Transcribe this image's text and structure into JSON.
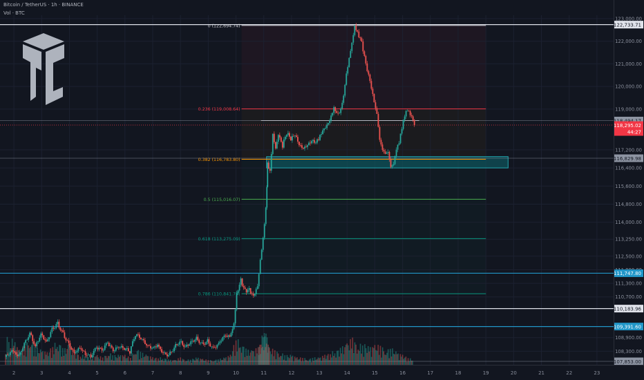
{
  "header": {
    "title": "Bitcoin / TetherUS · 1h · BINANCE",
    "volume_label": "Vol · BTC"
  },
  "colors": {
    "background": "#121620",
    "up": "#26a69a",
    "down": "#ef5350",
    "fib_0": "#c9cbd0",
    "fib_0236": "#f23645",
    "fib_0382": "#ff9800",
    "fib_05": "#4caf50",
    "fib_0618": "#089981",
    "fib_0786": "#089981",
    "support_line": "#2196c8",
    "zone_fill": "#0e5b62",
    "zone_border": "#22a7b0",
    "last_price_tag": "#f23645"
  },
  "chart_data": {
    "type": "candlestick",
    "symbol": "Bitcoin / TetherUS",
    "timeframe": "1h",
    "exchange": "BINANCE",
    "price_axis": {
      "ticks": [
        123000,
        122000,
        121000,
        120000,
        119000,
        117200,
        116400,
        115600,
        114800,
        114000,
        113250,
        112500,
        111900,
        111300,
        110700,
        108900,
        108300
      ],
      "tick_labels": [
        "123,000.00",
        "122,000.00",
        "121,000.00",
        "120,000.00",
        "119,000.00",
        "117,200.00",
        "116,400.00",
        "115,600.00",
        "114,800.00",
        "114,000.00",
        "113,250.00",
        "112,500.00",
        "111,900.00",
        "111,300.00",
        "110,700.00",
        "108,900.00",
        "108,300.00"
      ],
      "range": [
        107700,
        123150
      ]
    },
    "time_axis": {
      "ticks": [
        2,
        3,
        4,
        5,
        6,
        7,
        8,
        9,
        10,
        11,
        12,
        13,
        14,
        15,
        16,
        17,
        18,
        19,
        20,
        21,
        22,
        23
      ],
      "tick_labels": [
        "2",
        "3",
        "4",
        "5",
        "6",
        "7",
        "8",
        "9",
        "10",
        "11",
        "12",
        "13",
        "14",
        "15",
        "16",
        "17",
        "18",
        "19",
        "20",
        "21",
        "22",
        "23"
      ],
      "range": [
        1.5,
        23.6
      ]
    },
    "price_path": [
      [
        1.7,
        108050
      ],
      [
        2.0,
        108300
      ],
      [
        2.2,
        108150
      ],
      [
        2.4,
        108700
      ],
      [
        2.6,
        109150
      ],
      [
        2.8,
        108500
      ],
      [
        3.0,
        109000
      ],
      [
        3.2,
        108600
      ],
      [
        3.4,
        109200
      ],
      [
        3.6,
        109500
      ],
      [
        3.8,
        109100
      ],
      [
        4.0,
        108700
      ],
      [
        4.2,
        108300
      ],
      [
        4.4,
        108500
      ],
      [
        4.6,
        108150
      ],
      [
        4.8,
        108000
      ],
      [
        5.0,
        108400
      ],
      [
        5.2,
        108300
      ],
      [
        5.4,
        108700
      ],
      [
        5.6,
        108400
      ],
      [
        5.8,
        108600
      ],
      [
        6.0,
        108500
      ],
      [
        6.2,
        108300
      ],
      [
        6.4,
        109000
      ],
      [
        6.6,
        108800
      ],
      [
        6.8,
        108500
      ],
      [
        7.0,
        108400
      ],
      [
        7.2,
        108600
      ],
      [
        7.4,
        108300
      ],
      [
        7.6,
        108200
      ],
      [
        7.8,
        108500
      ],
      [
        8.0,
        108700
      ],
      [
        8.2,
        108400
      ],
      [
        8.4,
        108600
      ],
      [
        8.6,
        108800
      ],
      [
        8.8,
        108600
      ],
      [
        9.0,
        108800
      ],
      [
        9.2,
        108500
      ],
      [
        9.4,
        108700
      ],
      [
        9.6,
        109000
      ],
      [
        9.8,
        108900
      ],
      [
        9.95,
        109400
      ],
      [
        10.05,
        110800
      ],
      [
        10.2,
        111400
      ],
      [
        10.35,
        111000
      ],
      [
        10.5,
        111100
      ],
      [
        10.65,
        110800
      ],
      [
        10.8,
        111200
      ],
      [
        10.9,
        112300
      ],
      [
        11.0,
        113200
      ],
      [
        11.1,
        114500
      ],
      [
        11.15,
        116500
      ],
      [
        11.25,
        116200
      ],
      [
        11.35,
        117900
      ],
      [
        11.45,
        117300
      ],
      [
        11.55,
        117900
      ],
      [
        11.7,
        117400
      ],
      [
        11.85,
        117900
      ],
      [
        12.0,
        117600
      ],
      [
        12.15,
        117800
      ],
      [
        12.3,
        117400
      ],
      [
        12.45,
        117300
      ],
      [
        12.6,
        117500
      ],
      [
        12.75,
        117700
      ],
      [
        12.9,
        117600
      ],
      [
        13.0,
        117700
      ],
      [
        13.15,
        118000
      ],
      [
        13.3,
        118200
      ],
      [
        13.45,
        118600
      ],
      [
        13.55,
        119100
      ],
      [
        13.7,
        118800
      ],
      [
        13.85,
        119300
      ],
      [
        14.0,
        120600
      ],
      [
        14.1,
        121300
      ],
      [
        14.2,
        121900
      ],
      [
        14.3,
        122600
      ],
      [
        14.4,
        122300
      ],
      [
        14.55,
        121900
      ],
      [
        14.7,
        121000
      ],
      [
        14.85,
        120300
      ],
      [
        15.0,
        119400
      ],
      [
        15.1,
        118800
      ],
      [
        15.2,
        117600
      ],
      [
        15.3,
        117100
      ],
      [
        15.4,
        116900
      ],
      [
        15.5,
        117000
      ],
      [
        15.6,
        116400
      ],
      [
        15.7,
        116600
      ],
      [
        15.8,
        117300
      ],
      [
        15.9,
        117600
      ],
      [
        16.0,
        118200
      ],
      [
        16.1,
        118700
      ],
      [
        16.2,
        118900
      ],
      [
        16.35,
        118600
      ],
      [
        16.45,
        118300
      ]
    ],
    "volume_path": [
      [
        1.7,
        0.6
      ],
      [
        2.0,
        0.5
      ],
      [
        2.2,
        0.3
      ],
      [
        2.4,
        0.4
      ],
      [
        2.6,
        0.55
      ],
      [
        2.8,
        0.35
      ],
      [
        3.0,
        0.3
      ],
      [
        3.2,
        0.25
      ],
      [
        3.4,
        0.4
      ],
      [
        3.6,
        0.5
      ],
      [
        3.8,
        0.3
      ],
      [
        4.0,
        0.45
      ],
      [
        4.2,
        0.25
      ],
      [
        4.4,
        0.2
      ],
      [
        4.6,
        0.2
      ],
      [
        4.8,
        0.15
      ],
      [
        5.0,
        0.2
      ],
      [
        5.2,
        0.15
      ],
      [
        5.4,
        0.25
      ],
      [
        5.6,
        0.2
      ],
      [
        5.8,
        0.2
      ],
      [
        6.0,
        0.2
      ],
      [
        6.2,
        0.15
      ],
      [
        6.4,
        0.35
      ],
      [
        6.6,
        0.25
      ],
      [
        6.8,
        0.2
      ],
      [
        7.0,
        0.15
      ],
      [
        7.2,
        0.15
      ],
      [
        7.4,
        0.15
      ],
      [
        7.6,
        0.1
      ],
      [
        7.8,
        0.1
      ],
      [
        8.0,
        0.15
      ],
      [
        8.2,
        0.1
      ],
      [
        8.4,
        0.12
      ],
      [
        8.6,
        0.15
      ],
      [
        8.8,
        0.12
      ],
      [
        9.0,
        0.1
      ],
      [
        9.2,
        0.1
      ],
      [
        9.4,
        0.12
      ],
      [
        9.6,
        0.15
      ],
      [
        9.8,
        0.2
      ],
      [
        10.0,
        0.55
      ],
      [
        10.2,
        0.45
      ],
      [
        10.4,
        0.3
      ],
      [
        10.6,
        0.3
      ],
      [
        10.8,
        0.35
      ],
      [
        10.9,
        0.5
      ],
      [
        11.0,
        0.7
      ],
      [
        11.1,
        0.6
      ],
      [
        11.2,
        0.35
      ],
      [
        11.4,
        0.3
      ],
      [
        11.6,
        0.25
      ],
      [
        11.8,
        0.2
      ],
      [
        12.0,
        0.2
      ],
      [
        12.2,
        0.15
      ],
      [
        12.4,
        0.15
      ],
      [
        12.6,
        0.12
      ],
      [
        12.8,
        0.15
      ],
      [
        13.0,
        0.15
      ],
      [
        13.2,
        0.2
      ],
      [
        13.4,
        0.25
      ],
      [
        13.6,
        0.3
      ],
      [
        13.8,
        0.35
      ],
      [
        14.0,
        0.45
      ],
      [
        14.2,
        0.55
      ],
      [
        14.4,
        0.4
      ],
      [
        14.6,
        0.45
      ],
      [
        14.8,
        0.35
      ],
      [
        15.0,
        0.4
      ],
      [
        15.2,
        0.4
      ],
      [
        15.4,
        0.3
      ],
      [
        15.6,
        0.35
      ],
      [
        15.8,
        0.25
      ],
      [
        16.0,
        0.2
      ],
      [
        16.2,
        0.15
      ],
      [
        16.4,
        0.1
      ]
    ],
    "fib_levels": [
      {
        "key": "fib0",
        "label": "0 (122,694.74)",
        "price": 122694.74,
        "color": "#c9cbd0"
      },
      {
        "key": "fib236",
        "label": "0.236 (119,008.64)",
        "price": 119008.64,
        "color": "#f23645"
      },
      {
        "key": "fib382",
        "label": "0.382 (116,783.80)",
        "price": 116783.8,
        "color": "#ff9800"
      },
      {
        "key": "fib5",
        "label": "0.5 (115,016.07)",
        "price": 115016.07,
        "color": "#4caf50"
      },
      {
        "key": "fib618",
        "label": "0.618 (113,275.09)",
        "price": 113275.09,
        "color": "#089981"
      },
      {
        "key": "fib786",
        "label": "0.786 (110,841.79)",
        "price": 110841.79,
        "color": "#089981"
      }
    ],
    "fib_time_range": [
      10.2,
      19.0
    ],
    "horizontal_lines": [
      {
        "label": "122,733.71",
        "price": 122733.71,
        "color": "#e0e3eb",
        "label_bg": "#e0e3eb",
        "label_fg": "#131722"
      },
      {
        "label": "118,494.17",
        "price": 118494.17,
        "color": "#8e95a3",
        "label_bg": "#8e95a3",
        "label_fg": "#131722"
      },
      {
        "label": "116,829.98",
        "price": 116829.98,
        "color": "#8e95a3",
        "label_bg": "#8e95a3",
        "label_fg": "#131722"
      },
      {
        "label": "111,747.80",
        "price": 111747.8,
        "color": "#2196c8",
        "label_bg": "#2196c8",
        "label_fg": "#ffffff"
      },
      {
        "label": "110,183.96",
        "price": 110183.96,
        "color": "#e0e3eb",
        "label_bg": "#e0e3eb",
        "label_fg": "#131722"
      },
      {
        "label": "109,391.60",
        "price": 109391.6,
        "color": "#2196c8",
        "label_bg": "#2196c8",
        "label_fg": "#ffffff"
      },
      {
        "label": "107,853.00",
        "price": 107853.0,
        "color": "#8e95a3",
        "label_bg": "#8e95a3",
        "label_fg": "#131722"
      }
    ],
    "last_price": {
      "label": "118,295.02",
      "countdown": "44:27",
      "price": 118295.02
    },
    "support_zone": {
      "price_top": 116900,
      "price_bottom": 116400,
      "time_start": 11.1,
      "time_end": 19.8
    },
    "local_level": {
      "price": 118494.17,
      "time_start": 10.9,
      "time_end": 16.6
    }
  }
}
